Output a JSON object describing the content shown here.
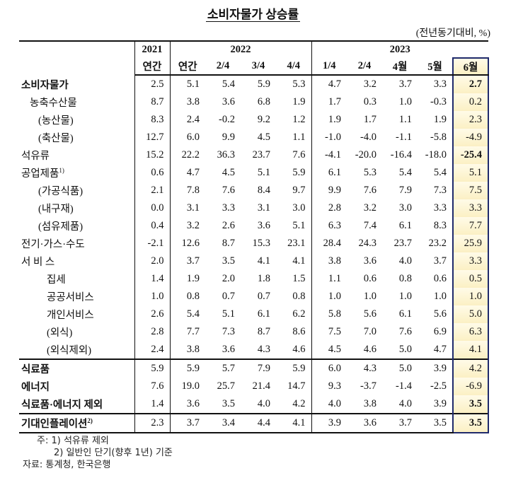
{
  "header": {
    "title": "소비자물가 상승률",
    "unit": "(전년동기대비, %)"
  },
  "table": {
    "years": [
      {
        "label": "2021",
        "span": 1
      },
      {
        "label": "2022",
        "span": 4
      },
      {
        "label": "2023",
        "span": 5
      }
    ],
    "columns": [
      "연간",
      "연간",
      "2/4",
      "3/4",
      "4/4",
      "1/4",
      "2/4",
      "4월",
      "5월",
      "6월"
    ],
    "rows": [
      {
        "label": "소비자물가",
        "values": [
          "2.5",
          "5.1",
          "5.4",
          "5.9",
          "5.3",
          "4.7",
          "3.2",
          "3.7",
          "3.3",
          "2.7"
        ]
      },
      {
        "label": "농축수산물",
        "values": [
          "8.7",
          "3.8",
          "3.6",
          "6.8",
          "1.9",
          "1.7",
          "0.3",
          "1.0",
          "-0.3",
          "0.2"
        ]
      },
      {
        "label": "(농산물)",
        "values": [
          "8.3",
          "2.4",
          "-0.2",
          "9.2",
          "1.2",
          "1.9",
          "1.7",
          "1.1",
          "1.9",
          "2.3"
        ]
      },
      {
        "label": "(축산물)",
        "values": [
          "12.7",
          "6.0",
          "9.9",
          "4.5",
          "1.1",
          "-1.0",
          "-4.0",
          "-1.1",
          "-5.8",
          "-4.9"
        ]
      },
      {
        "label": "석유류",
        "values": [
          "15.2",
          "22.2",
          "36.3",
          "23.7",
          "7.6",
          "-4.1",
          "-20.0",
          "-16.4",
          "-18.0",
          "-25.4"
        ]
      },
      {
        "label": "공업제품",
        "note": "1)",
        "values": [
          "0.6",
          "4.7",
          "4.5",
          "5.1",
          "5.9",
          "6.1",
          "5.3",
          "5.4",
          "5.4",
          "5.1"
        ]
      },
      {
        "label": "(가공식품)",
        "values": [
          "2.1",
          "7.8",
          "7.6",
          "8.4",
          "9.7",
          "9.9",
          "7.6",
          "7.9",
          "7.3",
          "7.5"
        ]
      },
      {
        "label": "(내구재)",
        "values": [
          "0.0",
          "3.1",
          "3.3",
          "3.1",
          "3.0",
          "2.8",
          "3.2",
          "3.0",
          "3.3",
          "3.3"
        ]
      },
      {
        "label": "(섬유제품)",
        "values": [
          "0.4",
          "3.2",
          "2.6",
          "3.6",
          "5.1",
          "6.3",
          "7.4",
          "6.1",
          "8.3",
          "7.7"
        ]
      },
      {
        "label": "전기·가스·수도",
        "values": [
          "-2.1",
          "12.6",
          "8.7",
          "15.3",
          "23.1",
          "28.4",
          "24.3",
          "23.7",
          "23.2",
          "25.9"
        ]
      },
      {
        "label": "서 비 스",
        "values": [
          "2.0",
          "3.7",
          "3.5",
          "4.1",
          "4.1",
          "3.8",
          "3.6",
          "4.0",
          "3.7",
          "3.3"
        ]
      },
      {
        "label": "집세",
        "values": [
          "1.4",
          "1.9",
          "2.0",
          "1.8",
          "1.5",
          "1.1",
          "0.6",
          "0.8",
          "0.6",
          "0.5"
        ]
      },
      {
        "label": "공공서비스",
        "values": [
          "1.0",
          "0.8",
          "0.7",
          "0.7",
          "0.8",
          "1.0",
          "1.0",
          "1.0",
          "1.0",
          "1.0"
        ]
      },
      {
        "label": "개인서비스",
        "values": [
          "2.6",
          "5.4",
          "5.1",
          "6.1",
          "6.2",
          "5.8",
          "5.6",
          "6.1",
          "5.6",
          "5.0"
        ]
      },
      {
        "label": "(외식)",
        "values": [
          "2.8",
          "7.7",
          "7.3",
          "8.7",
          "8.6",
          "7.5",
          "7.0",
          "7.6",
          "6.9",
          "6.3"
        ]
      },
      {
        "label": "(외식제외)",
        "values": [
          "2.4",
          "3.8",
          "3.6",
          "4.3",
          "4.6",
          "4.5",
          "4.6",
          "5.0",
          "4.7",
          "4.1"
        ]
      },
      {
        "label": "식료품",
        "values": [
          "5.9",
          "5.9",
          "5.7",
          "7.9",
          "5.9",
          "6.0",
          "4.3",
          "5.0",
          "3.9",
          "4.2"
        ]
      },
      {
        "label": "에너지",
        "values": [
          "7.6",
          "19.0",
          "25.7",
          "21.4",
          "14.7",
          "9.3",
          "-3.7",
          "-1.4",
          "-2.5",
          "-6.9"
        ]
      },
      {
        "label": "식료품·에너지 제외",
        "values": [
          "1.4",
          "3.6",
          "3.5",
          "4.0",
          "4.2",
          "4.0",
          "3.8",
          "4.0",
          "3.9",
          "3.5"
        ]
      },
      {
        "label": "기대인플레이션",
        "note": "2)",
        "values": [
          "2.3",
          "3.7",
          "3.4",
          "4.4",
          "4.1",
          "3.9",
          "3.6",
          "3.7",
          "3.5",
          "3.5"
        ]
      }
    ]
  },
  "notes": [
    "주: 1) 석유류 제외",
    "2) 일반인 단기(향후 1년) 기준",
    "자료: 통계청, 한국은행"
  ]
}
